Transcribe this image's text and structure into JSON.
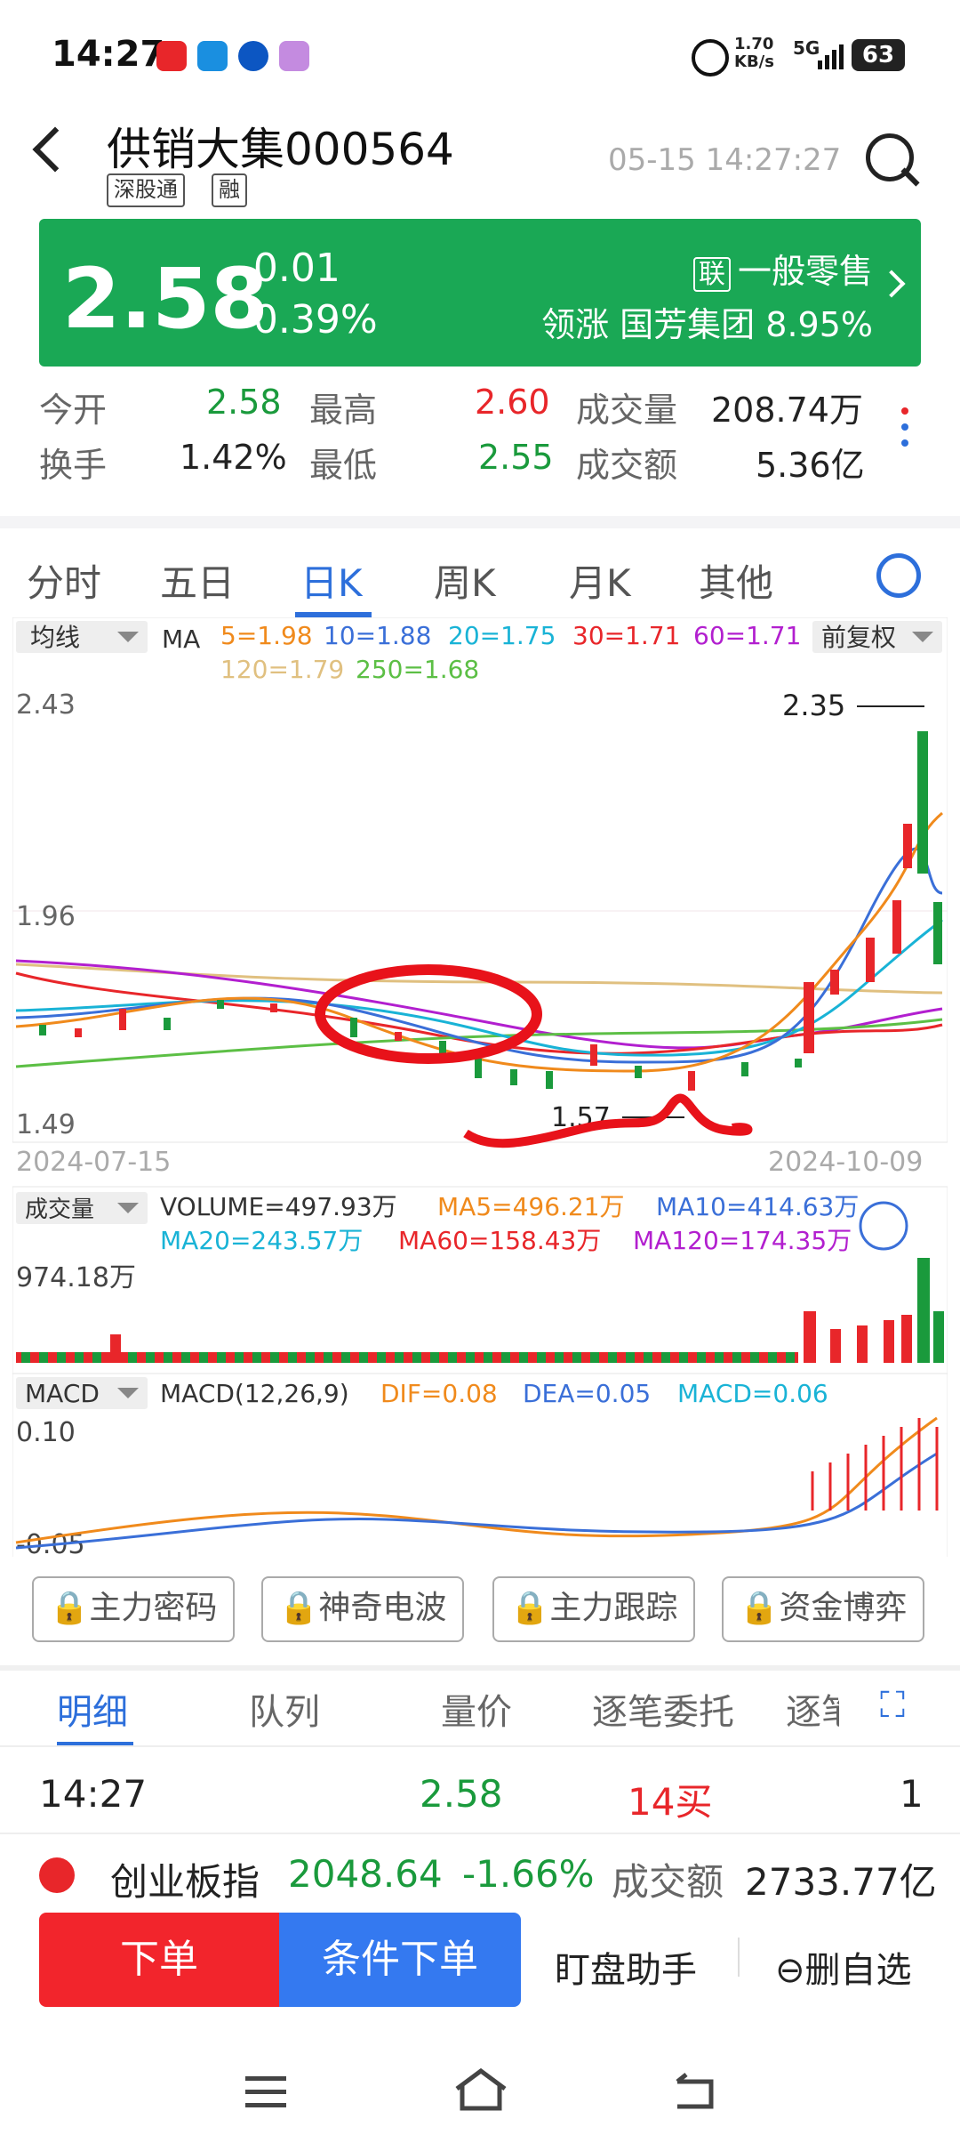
{
  "status": {
    "time": "14:27",
    "net_speed": "1.70 KB/s",
    "signal": "5G",
    "battery": "63"
  },
  "header": {
    "stock_name": "供销大集",
    "stock_code": "000564",
    "tags": [
      "深股通",
      "融"
    ],
    "datetime": "05-15 14:27:27"
  },
  "quote": {
    "price": "2.58",
    "change": "-0.01",
    "change_pct": "-0.39%",
    "sector_tag": "联",
    "sector": "一般零售",
    "leader_label": "领涨",
    "leader_name": "国芳集团",
    "leader_pct": "8.95%",
    "color": "#1aa855"
  },
  "stats": {
    "open_label": "今开",
    "open": "2.58",
    "high_label": "最高",
    "high": "2.60",
    "volume_label": "成交量",
    "volume": "208.74万",
    "turnover_label": "换手",
    "turnover": "1.42%",
    "low_label": "最低",
    "low": "2.55",
    "amount_label": "成交额",
    "amount": "5.36亿"
  },
  "tabs": [
    "分时",
    "五日",
    "日K",
    "周K",
    "月K",
    "其他"
  ],
  "active_tab": "日K",
  "kline": {
    "indicator_select": "均线",
    "ma_label": "MA",
    "ma_values": [
      {
        "text": "5=1.98",
        "color": "#f08a1c"
      },
      {
        "text": "10=1.88",
        "color": "#3a6fd8"
      },
      {
        "text": "20=1.75",
        "color": "#19b3d6"
      },
      {
        "text": "30=1.71",
        "color": "#e8262a"
      },
      {
        "text": "60=1.71",
        "color": "#b21fcf"
      },
      {
        "text": "120=1.79",
        "color": "#e0c080"
      },
      {
        "text": "250=1.68",
        "color": "#5cbf45"
      }
    ],
    "adjust": "前复权",
    "y_top": "2.43",
    "y_mid": "1.96",
    "y_bottom": "1.49",
    "max_label": "2.35",
    "min_label": "1.57",
    "date_start": "2024-07-15",
    "date_end": "2024-10-09"
  },
  "volume_panel": {
    "select": "成交量",
    "volume": "VOLUME=497.93万",
    "ma5": "MA5=496.21万",
    "ma10": "MA10=414.63万",
    "ma20": "MA20=243.57万",
    "ma60": "MA60=158.43万",
    "ma120": "MA120=174.35万",
    "y_top": "974.18万"
  },
  "macd_panel": {
    "select": "MACD",
    "params": "MACD(12,26,9)",
    "dif": "DIF=0.08",
    "dea": "DEA=0.05",
    "macd": "MACD=0.06",
    "y_top": "0.10",
    "y_bottom": "-0.05"
  },
  "feature_buttons": [
    "主力密码",
    "神奇电波",
    "主力跟踪",
    "资金博弈"
  ],
  "detail_tabs": [
    "明细",
    "队列",
    "量价",
    "逐笔委托",
    "逐笔"
  ],
  "detail_row": {
    "time": "14:27",
    "price": "2.58",
    "vol": "14买",
    "count": "1"
  },
  "index_bar": {
    "name": "创业板指",
    "value": "2048.64",
    "pct": "-1.66%",
    "amount_label": "成交额",
    "amount": "2733.77亿"
  },
  "actions": {
    "order": "下单",
    "conditional": "条件下单",
    "assistant": "盯盘助手",
    "remove": "删自选"
  },
  "chart_data": {
    "type": "candlestick",
    "x": [
      "2024-07-15",
      "2024-10-09"
    ],
    "ylim": [
      1.49,
      2.43
    ],
    "high_marked": 2.35,
    "low_marked": 1.57,
    "ma_latest": {
      "MA5": 1.98,
      "MA10": 1.88,
      "MA20": 1.75,
      "MA30": 1.71,
      "MA60": 1.71,
      "MA120": 1.79,
      "MA250": 1.68
    }
  }
}
